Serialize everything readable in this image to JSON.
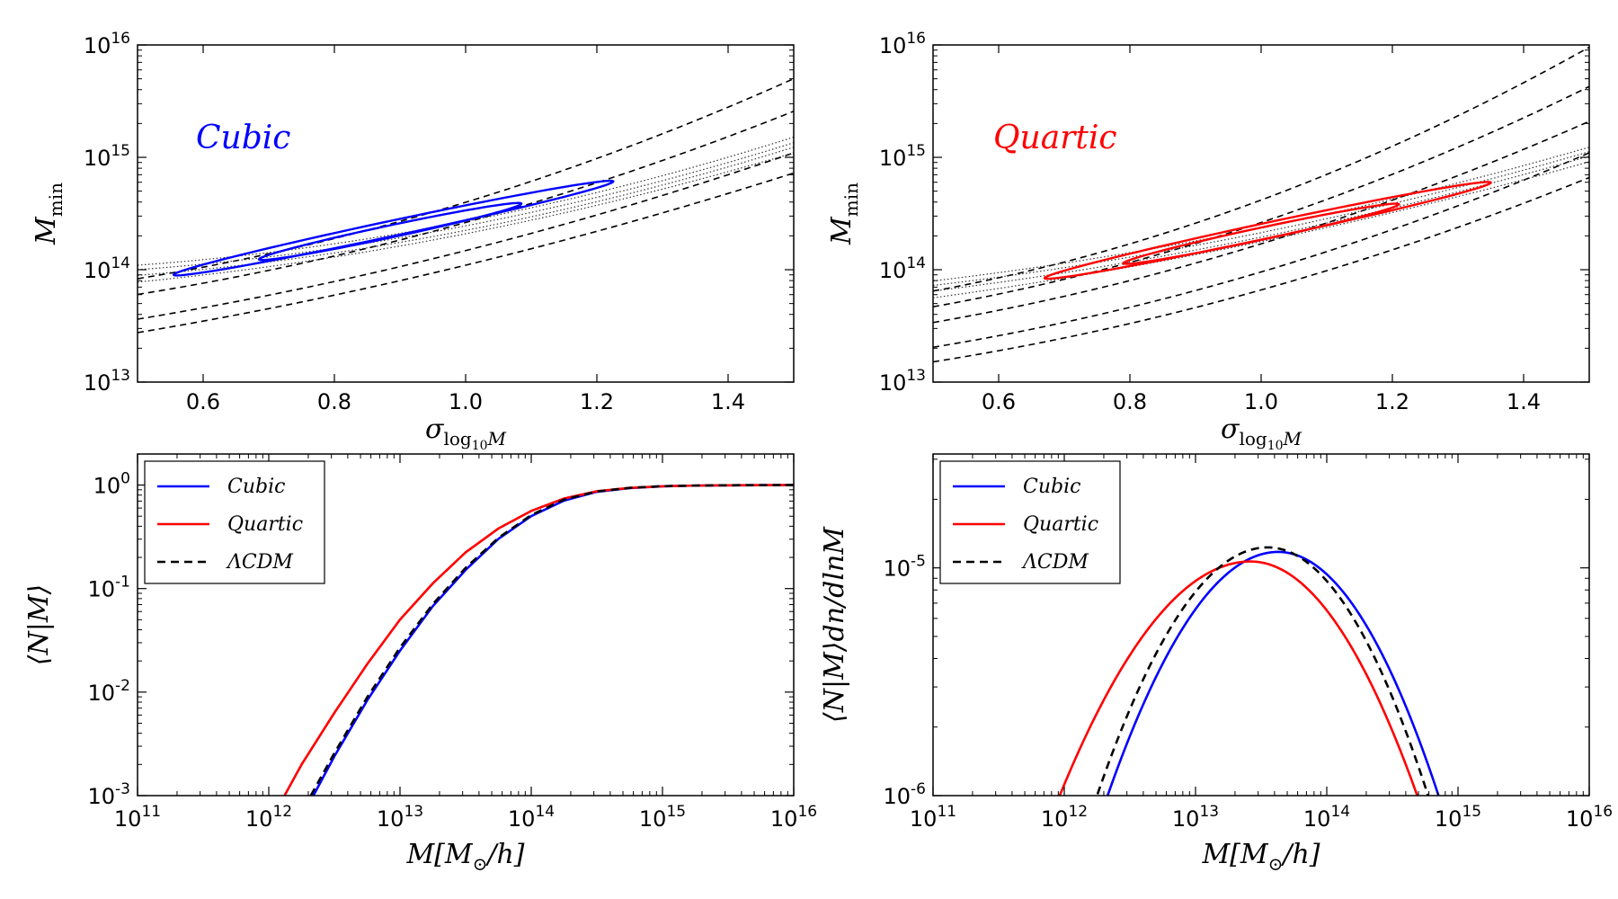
{
  "chart_data": [
    {
      "id": "top-left",
      "type": "contour",
      "annotation": {
        "text": "Cubic",
        "color": "#0000ff"
      },
      "xlabel": {
        "main": "σ",
        "sub": "log",
        "subsub": "10",
        "tail": "M"
      },
      "ylabel": {
        "main": "M",
        "sub": "min"
      },
      "xlim": [
        0.5,
        1.5
      ],
      "ylim_log10": [
        13,
        16
      ],
      "xticks": [
        0.6,
        0.8,
        1.0,
        1.2,
        1.4
      ],
      "xtick_labels": [
        "0.6",
        "0.8",
        "1.0",
        "1.2",
        "1.4"
      ],
      "yticks_log10": [
        13,
        14,
        15,
        16
      ],
      "ytick_labels": [
        {
          "base": "10",
          "exp": "13"
        },
        {
          "base": "10",
          "exp": "14"
        },
        {
          "base": "10",
          "exp": "15"
        },
        {
          "base": "10",
          "exp": "16"
        }
      ],
      "dashed_curves": [
        {
          "name": "dashed-1",
          "points": [
            [
              0.5,
              13.44
            ],
            [
              1.0,
              14.04
            ],
            [
              1.5,
              14.86
            ]
          ]
        },
        {
          "name": "dashed-2",
          "points": [
            [
              0.5,
              13.56
            ],
            [
              1.0,
              14.17
            ],
            [
              1.5,
              15.04
            ]
          ]
        },
        {
          "name": "dashed-3",
          "points": [
            [
              0.5,
              13.78
            ],
            [
              1.0,
              14.42
            ],
            [
              1.5,
              15.41
            ]
          ]
        },
        {
          "name": "dashed-4",
          "points": [
            [
              0.5,
              13.92
            ],
            [
              1.0,
              14.6
            ],
            [
              1.5,
              15.7
            ]
          ]
        }
      ],
      "dotted_curves": [
        {
          "name": "dotted-1",
          "points": [
            [
              0.5,
              13.89
            ],
            [
              1.0,
              14.32
            ],
            [
              1.5,
              15.04
            ]
          ]
        },
        {
          "name": "dotted-2",
          "points": [
            [
              0.5,
              13.95
            ],
            [
              1.0,
              14.35
            ],
            [
              1.5,
              15.09
            ]
          ]
        },
        {
          "name": "dotted-3",
          "points": [
            [
              0.5,
              14.0
            ],
            [
              1.0,
              14.39
            ],
            [
              1.5,
              15.13
            ]
          ]
        },
        {
          "name": "dotted-4",
          "points": [
            [
              0.5,
              14.04
            ],
            [
              1.0,
              14.43
            ],
            [
              1.5,
              15.18
            ]
          ]
        }
      ],
      "contours": [
        {
          "name": "contour-outer",
          "cx": 0.89,
          "cy": 14.37,
          "rx": 0.335,
          "ry": 0.07,
          "slope": 1.24,
          "color": "#0000ff"
        },
        {
          "name": "contour-inner",
          "cx": 0.885,
          "cy": 14.34,
          "rx": 0.2,
          "ry": 0.055,
          "slope": 1.24,
          "color": "#0000ff"
        }
      ]
    },
    {
      "id": "top-right",
      "type": "contour",
      "annotation": {
        "text": "Quartic",
        "color": "#ff0000"
      },
      "xlabel": {
        "main": "σ",
        "sub": "log",
        "subsub": "10",
        "tail": "M"
      },
      "ylabel": {
        "main": "M",
        "sub": "min"
      },
      "xlim": [
        0.5,
        1.5
      ],
      "ylim_log10": [
        13,
        16
      ],
      "xticks": [
        0.6,
        0.8,
        1.0,
        1.2,
        1.4
      ],
      "xtick_labels": [
        "0.6",
        "0.8",
        "1.0",
        "1.2",
        "1.4"
      ],
      "yticks_log10": [
        13,
        14,
        15,
        16
      ],
      "ytick_labels": [
        {
          "base": "10",
          "exp": "13"
        },
        {
          "base": "10",
          "exp": "14"
        },
        {
          "base": "10",
          "exp": "15"
        },
        {
          "base": "10",
          "exp": "16"
        }
      ],
      "dashed_curves": [
        {
          "name": "dashed-1",
          "points": [
            [
              0.5,
              13.18
            ],
            [
              1.0,
              13.82
            ],
            [
              1.5,
              14.82
            ]
          ]
        },
        {
          "name": "dashed-2",
          "points": [
            [
              0.5,
              13.31
            ],
            [
              1.0,
              13.98
            ],
            [
              1.5,
              15.04
            ]
          ]
        },
        {
          "name": "dashed-3",
          "points": [
            [
              0.5,
              13.53
            ],
            [
              1.0,
              14.23
            ],
            [
              1.5,
              15.32
            ]
          ]
        },
        {
          "name": "dashed-4",
          "points": [
            [
              0.5,
              13.67
            ],
            [
              1.0,
              14.42
            ],
            [
              1.5,
              15.63
            ]
          ]
        },
        {
          "name": "dashed-5",
          "points": [
            [
              0.5,
              13.81
            ],
            [
              1.0,
              14.62
            ],
            [
              1.5,
              15.98
            ]
          ]
        }
      ],
      "dotted_curves": [
        {
          "name": "dotted-1",
          "points": [
            [
              0.5,
              13.75
            ],
            [
              1.0,
              14.25
            ],
            [
              1.5,
              14.96
            ]
          ]
        },
        {
          "name": "dotted-2",
          "points": [
            [
              0.5,
              13.81
            ],
            [
              1.0,
              14.29
            ],
            [
              1.5,
              15.01
            ]
          ]
        },
        {
          "name": "dotted-3",
          "points": [
            [
              0.5,
              13.86
            ],
            [
              1.0,
              14.33
            ],
            [
              1.5,
              15.05
            ]
          ]
        },
        {
          "name": "dotted-4",
          "points": [
            [
              0.5,
              13.9
            ],
            [
              1.0,
              14.37
            ],
            [
              1.5,
              15.09
            ]
          ]
        }
      ],
      "contours": [
        {
          "name": "contour-outer",
          "cx": 1.01,
          "cy": 14.35,
          "rx": 0.34,
          "ry": 0.07,
          "slope": 1.25,
          "color": "#ff0000"
        },
        {
          "name": "contour-inner",
          "cx": 1.0,
          "cy": 14.32,
          "rx": 0.21,
          "ry": 0.055,
          "slope": 1.25,
          "color": "#ff0000"
        }
      ]
    },
    {
      "id": "bottom-left",
      "type": "line",
      "xlabel": {
        "main": "M[M",
        "sub": "⊙",
        "tail": "/h]"
      },
      "ylabel": {
        "text": "⟨N|M⟩"
      },
      "xlim_log10": [
        11,
        16
      ],
      "ylim_log10": [
        -3,
        0.3
      ],
      "xticks_log10": [
        11,
        12,
        13,
        14,
        15,
        16
      ],
      "xtick_labels": [
        {
          "base": "10",
          "exp": "11"
        },
        {
          "base": "10",
          "exp": "12"
        },
        {
          "base": "10",
          "exp": "13"
        },
        {
          "base": "10",
          "exp": "14"
        },
        {
          "base": "10",
          "exp": "15"
        },
        {
          "base": "10",
          "exp": "16"
        }
      ],
      "yticks_log10": [
        -3,
        -2,
        -1,
        0
      ],
      "ytick_labels": [
        {
          "base": "10",
          "exp": "-3"
        },
        {
          "base": "10",
          "exp": "-2"
        },
        {
          "base": "10",
          "exp": "-1"
        },
        {
          "base": "10",
          "exp": "0"
        }
      ],
      "legend": {
        "placement": "upper-left",
        "entries": [
          {
            "label": "Cubic",
            "color": "#0000ff",
            "style": "solid"
          },
          {
            "label": "Quartic",
            "color": "#ff0000",
            "style": "solid"
          },
          {
            "label": "ΛCDM",
            "color": "#000000",
            "style": "dashed"
          }
        ]
      },
      "series": [
        {
          "name": "Cubic",
          "color": "#0000ff",
          "style": "solid",
          "x_log10": [
            12.34,
            12.5,
            12.75,
            13.0,
            13.25,
            13.5,
            13.75,
            14.0,
            14.25,
            14.5,
            14.75,
            15.0,
            15.25,
            15.5,
            15.75,
            16.0
          ],
          "y_log10": [
            -3.0,
            -2.62,
            -2.08,
            -1.6,
            -1.17,
            -0.82,
            -0.52,
            -0.3,
            -0.15,
            -0.065,
            -0.03,
            -0.012,
            -0.005,
            -0.002,
            -0.001,
            0.0
          ]
        },
        {
          "name": "Quartic",
          "color": "#ff0000",
          "style": "solid",
          "x_log10": [
            12.12,
            12.25,
            12.5,
            12.75,
            13.0,
            13.25,
            13.5,
            13.75,
            14.0,
            14.25,
            14.5,
            14.75,
            15.0,
            15.25,
            15.5,
            15.75,
            16.0
          ],
          "y_log10": [
            -3.0,
            -2.7,
            -2.2,
            -1.73,
            -1.3,
            -0.95,
            -0.65,
            -0.42,
            -0.25,
            -0.13,
            -0.06,
            -0.027,
            -0.012,
            -0.005,
            -0.002,
            -0.001,
            0.0
          ]
        },
        {
          "name": "ΛCDM",
          "color": "#000000",
          "style": "dashed",
          "x_log10": [
            12.32,
            12.5,
            12.75,
            13.0,
            13.25,
            13.5,
            13.75,
            14.0,
            14.25,
            14.5,
            14.75,
            15.0,
            15.25,
            15.5,
            15.75,
            16.0
          ],
          "y_log10": [
            -3.0,
            -2.59,
            -2.05,
            -1.57,
            -1.15,
            -0.8,
            -0.51,
            -0.29,
            -0.14,
            -0.062,
            -0.027,
            -0.011,
            -0.005,
            -0.002,
            -0.001,
            0.0
          ]
        }
      ]
    },
    {
      "id": "bottom-right",
      "type": "line",
      "xlabel": {
        "main": "M[M",
        "sub": "⊙",
        "tail": "/h]"
      },
      "ylabel": {
        "text": "⟨N|M⟩dn/dlnM"
      },
      "xlim_log10": [
        11,
        16
      ],
      "ylim_log10": [
        -6,
        -4.5
      ],
      "xticks_log10": [
        11,
        12,
        13,
        14,
        15,
        16
      ],
      "xtick_labels": [
        {
          "base": "10",
          "exp": "11"
        },
        {
          "base": "10",
          "exp": "12"
        },
        {
          "base": "10",
          "exp": "13"
        },
        {
          "base": "10",
          "exp": "14"
        },
        {
          "base": "10",
          "exp": "15"
        },
        {
          "base": "10",
          "exp": "16"
        }
      ],
      "yticks_log10": [
        -6,
        -5
      ],
      "ytick_labels": [
        {
          "base": "10",
          "exp": "-6"
        },
        {
          "base": "10",
          "exp": "-5"
        }
      ],
      "legend": {
        "placement": "upper-left",
        "entries": [
          {
            "label": "Cubic",
            "color": "#0000ff",
            "style": "solid"
          },
          {
            "label": "Quartic",
            "color": "#ff0000",
            "style": "solid"
          },
          {
            "label": "ΛCDM",
            "color": "#000000",
            "style": "dashed"
          }
        ]
      },
      "series": [
        {
          "name": "Cubic",
          "color": "#0000ff",
          "style": "solid",
          "peak_x_log10": 13.63,
          "peak_y_log10": -4.93,
          "left_root_x_log10": 12.3,
          "right_root_x_log10": 14.88
        },
        {
          "name": "Quartic",
          "color": "#ff0000",
          "style": "solid",
          "peak_x_log10": 13.42,
          "peak_y_log10": -4.972,
          "left_root_x_log10": 11.93,
          "right_root_x_log10": 14.72
        },
        {
          "name": "ΛCDM",
          "color": "#000000",
          "style": "dashed",
          "peak_x_log10": 13.55,
          "peak_y_log10": -4.91,
          "left_root_x_log10": 12.22,
          "right_root_x_log10": 14.8
        }
      ]
    }
  ]
}
